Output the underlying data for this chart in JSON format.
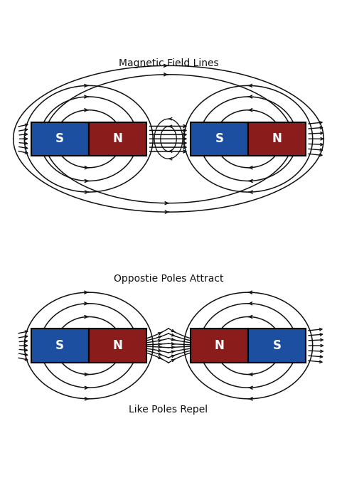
{
  "title_top": "Magnetic Field Lines",
  "title_mid": "Oppostie Poles Attract",
  "title_bot": "Like Poles Repel",
  "bg_color": "#ffffff",
  "magnet_blue": "#1c4fa0",
  "magnet_red": "#8b1c1c",
  "text_color": "#ffffff",
  "line_color": "#111111",
  "title_color": "#111111",
  "font_size_title": 10,
  "font_size_label": 12,
  "lw_main": 1.1,
  "arrow_scale": 7
}
